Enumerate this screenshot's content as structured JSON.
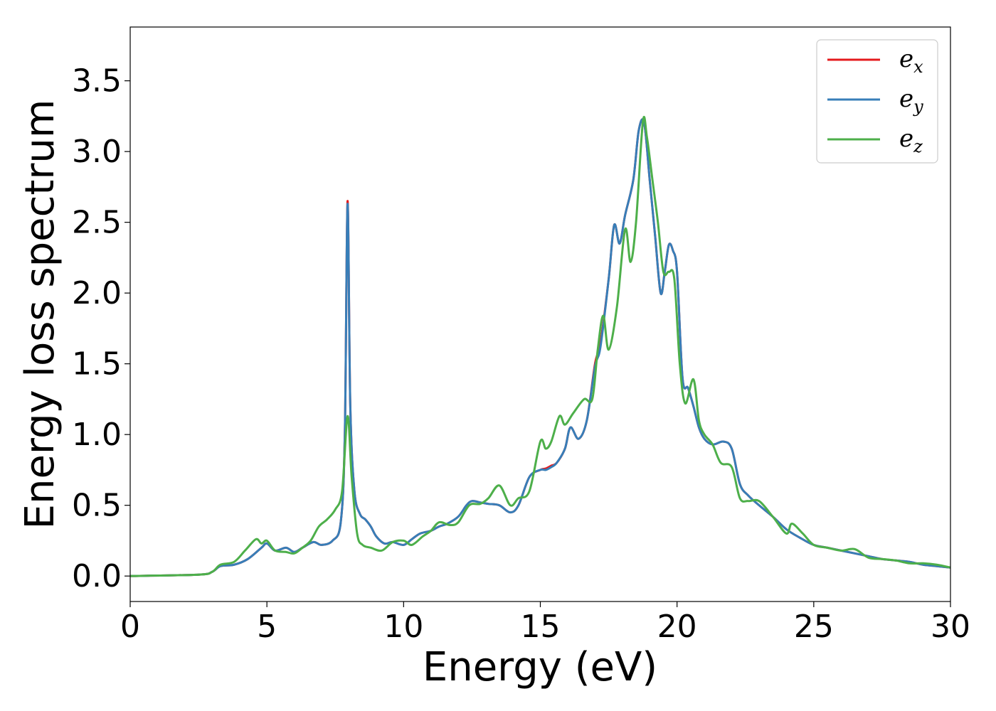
{
  "chart_data": {
    "type": "line",
    "title": "",
    "xlabel": "Energy (eV)",
    "ylabel": "Energy loss spectrum",
    "xlim": [
      0,
      30
    ],
    "ylim": [
      -0.18,
      3.88
    ],
    "xticks": [
      0,
      5,
      10,
      15,
      20,
      25,
      30
    ],
    "xtick_labels": [
      "0",
      "5",
      "10",
      "15",
      "20",
      "25",
      "30"
    ],
    "yticks": [
      0.0,
      0.5,
      1.0,
      1.5,
      2.0,
      2.5,
      3.0,
      3.5
    ],
    "ytick_labels": [
      "0.0",
      "0.5",
      "1.0",
      "1.5",
      "2.0",
      "2.5",
      "3.0",
      "3.5"
    ],
    "grid": false,
    "legend_position": "top-right",
    "series": [
      {
        "name": "e",
        "subscript": "x",
        "color": "#e41a1c",
        "x": [
          0,
          2.5,
          3.0,
          3.3,
          3.8,
          4.3,
          4.8,
          5.0,
          5.3,
          5.7,
          6.0,
          6.3,
          6.7,
          7.0,
          7.4,
          7.7,
          7.85,
          7.95,
          8.05,
          8.2,
          8.4,
          8.6,
          8.8,
          9.0,
          9.3,
          9.6,
          10.0,
          10.3,
          10.6,
          11.0,
          11.3,
          11.6,
          12.0,
          12.3,
          12.5,
          12.8,
          13.1,
          13.5,
          13.9,
          14.2,
          14.6,
          15.0,
          15.2,
          15.4,
          15.6,
          15.9,
          16.1,
          16.4,
          16.7,
          17.0,
          17.2,
          17.5,
          17.7,
          17.9,
          18.1,
          18.4,
          18.6,
          18.8,
          19.0,
          19.2,
          19.4,
          19.55,
          19.7,
          19.85,
          20.0,
          20.2,
          20.4,
          20.6,
          20.8,
          21.0,
          21.3,
          21.7,
          22.0,
          22.3,
          22.6,
          23.0,
          23.5,
          24.0,
          24.5,
          25.0,
          25.5,
          26.0,
          26.5,
          27.0,
          27.5,
          28.0,
          28.5,
          29.0,
          29.5,
          30.0
        ],
        "y": [
          0.0,
          0.01,
          0.03,
          0.07,
          0.08,
          0.12,
          0.2,
          0.23,
          0.18,
          0.2,
          0.17,
          0.2,
          0.24,
          0.22,
          0.25,
          0.38,
          1.0,
          2.65,
          1.2,
          0.6,
          0.44,
          0.4,
          0.35,
          0.28,
          0.23,
          0.24,
          0.22,
          0.26,
          0.3,
          0.32,
          0.35,
          0.37,
          0.42,
          0.5,
          0.53,
          0.52,
          0.51,
          0.5,
          0.45,
          0.5,
          0.7,
          0.75,
          0.76,
          0.78,
          0.8,
          0.9,
          1.05,
          0.97,
          1.1,
          1.5,
          1.65,
          2.1,
          2.48,
          2.35,
          2.55,
          2.8,
          3.15,
          3.2,
          2.8,
          2.4,
          2.0,
          2.15,
          2.34,
          2.3,
          2.15,
          1.4,
          1.33,
          1.2,
          1.05,
          0.97,
          0.93,
          0.95,
          0.9,
          0.65,
          0.57,
          0.5,
          0.42,
          0.33,
          0.27,
          0.22,
          0.2,
          0.18,
          0.16,
          0.14,
          0.12,
          0.11,
          0.1,
          0.08,
          0.07,
          0.06
        ]
      },
      {
        "name": "e",
        "subscript": "y",
        "color": "#377eb8",
        "x": [
          0,
          2.5,
          3.0,
          3.3,
          3.8,
          4.3,
          4.8,
          5.0,
          5.3,
          5.7,
          6.0,
          6.3,
          6.7,
          7.0,
          7.4,
          7.7,
          7.85,
          7.95,
          8.05,
          8.2,
          8.4,
          8.6,
          8.8,
          9.0,
          9.3,
          9.6,
          10.0,
          10.3,
          10.6,
          11.0,
          11.3,
          11.6,
          12.0,
          12.3,
          12.5,
          12.8,
          13.1,
          13.5,
          13.9,
          14.2,
          14.6,
          15.0,
          15.2,
          15.4,
          15.6,
          15.9,
          16.1,
          16.4,
          16.7,
          17.0,
          17.2,
          17.5,
          17.7,
          17.9,
          18.1,
          18.4,
          18.6,
          18.8,
          19.0,
          19.2,
          19.4,
          19.55,
          19.7,
          19.85,
          20.0,
          20.2,
          20.4,
          20.6,
          20.8,
          21.0,
          21.3,
          21.7,
          22.0,
          22.3,
          22.6,
          23.0,
          23.5,
          24.0,
          24.5,
          25.0,
          25.5,
          26.0,
          26.5,
          27.0,
          27.5,
          28.0,
          28.5,
          29.0,
          29.5,
          30.0
        ],
        "y": [
          0.0,
          0.01,
          0.03,
          0.07,
          0.08,
          0.12,
          0.2,
          0.23,
          0.18,
          0.2,
          0.17,
          0.2,
          0.24,
          0.22,
          0.25,
          0.38,
          1.0,
          2.63,
          1.2,
          0.6,
          0.44,
          0.4,
          0.35,
          0.28,
          0.23,
          0.24,
          0.22,
          0.26,
          0.3,
          0.32,
          0.35,
          0.37,
          0.42,
          0.5,
          0.53,
          0.52,
          0.51,
          0.5,
          0.45,
          0.5,
          0.7,
          0.75,
          0.75,
          0.77,
          0.8,
          0.9,
          1.05,
          0.97,
          1.1,
          1.48,
          1.62,
          2.1,
          2.48,
          2.35,
          2.55,
          2.8,
          3.15,
          3.2,
          2.8,
          2.4,
          2.0,
          2.15,
          2.34,
          2.3,
          2.15,
          1.4,
          1.33,
          1.2,
          1.05,
          0.97,
          0.93,
          0.95,
          0.9,
          0.65,
          0.57,
          0.5,
          0.42,
          0.33,
          0.27,
          0.22,
          0.2,
          0.18,
          0.16,
          0.14,
          0.12,
          0.11,
          0.1,
          0.08,
          0.07,
          0.06
        ]
      },
      {
        "name": "e",
        "subscript": "z",
        "color": "#4daf4a",
        "x": [
          0,
          2.5,
          3.0,
          3.3,
          3.8,
          4.2,
          4.6,
          4.8,
          5.0,
          5.3,
          5.7,
          6.0,
          6.3,
          6.6,
          6.9,
          7.2,
          7.5,
          7.75,
          7.95,
          8.1,
          8.3,
          8.5,
          8.8,
          9.2,
          9.6,
          10.0,
          10.3,
          10.7,
          11.0,
          11.3,
          11.7,
          12.0,
          12.4,
          12.8,
          13.1,
          13.5,
          13.9,
          14.2,
          14.6,
          15.0,
          15.2,
          15.4,
          15.7,
          15.9,
          16.2,
          16.6,
          16.9,
          17.1,
          17.3,
          17.5,
          17.8,
          18.1,
          18.3,
          18.5,
          18.75,
          18.9,
          19.1,
          19.3,
          19.5,
          19.7,
          19.9,
          20.1,
          20.3,
          20.6,
          20.8,
          21.0,
          21.3,
          21.6,
          22.0,
          22.3,
          22.6,
          23.0,
          23.5,
          24.0,
          24.2,
          24.6,
          25.0,
          25.5,
          26.0,
          26.5,
          27.0,
          27.5,
          28.0,
          28.5,
          29.0,
          29.5,
          30.0
        ],
        "y": [
          0.0,
          0.01,
          0.03,
          0.08,
          0.1,
          0.18,
          0.26,
          0.23,
          0.25,
          0.18,
          0.17,
          0.16,
          0.2,
          0.25,
          0.35,
          0.4,
          0.47,
          0.6,
          1.13,
          0.7,
          0.3,
          0.22,
          0.2,
          0.18,
          0.24,
          0.25,
          0.22,
          0.28,
          0.32,
          0.38,
          0.36,
          0.38,
          0.5,
          0.51,
          0.55,
          0.64,
          0.5,
          0.55,
          0.6,
          0.95,
          0.9,
          0.95,
          1.13,
          1.07,
          1.15,
          1.25,
          1.25,
          1.6,
          1.84,
          1.6,
          1.9,
          2.45,
          2.22,
          2.5,
          3.21,
          3.1,
          2.8,
          2.5,
          2.15,
          2.15,
          2.1,
          1.5,
          1.22,
          1.39,
          1.1,
          1.0,
          0.93,
          0.8,
          0.77,
          0.55,
          0.53,
          0.53,
          0.42,
          0.3,
          0.37,
          0.3,
          0.22,
          0.2,
          0.18,
          0.19,
          0.13,
          0.12,
          0.11,
          0.09,
          0.09,
          0.08,
          0.06
        ]
      }
    ]
  }
}
